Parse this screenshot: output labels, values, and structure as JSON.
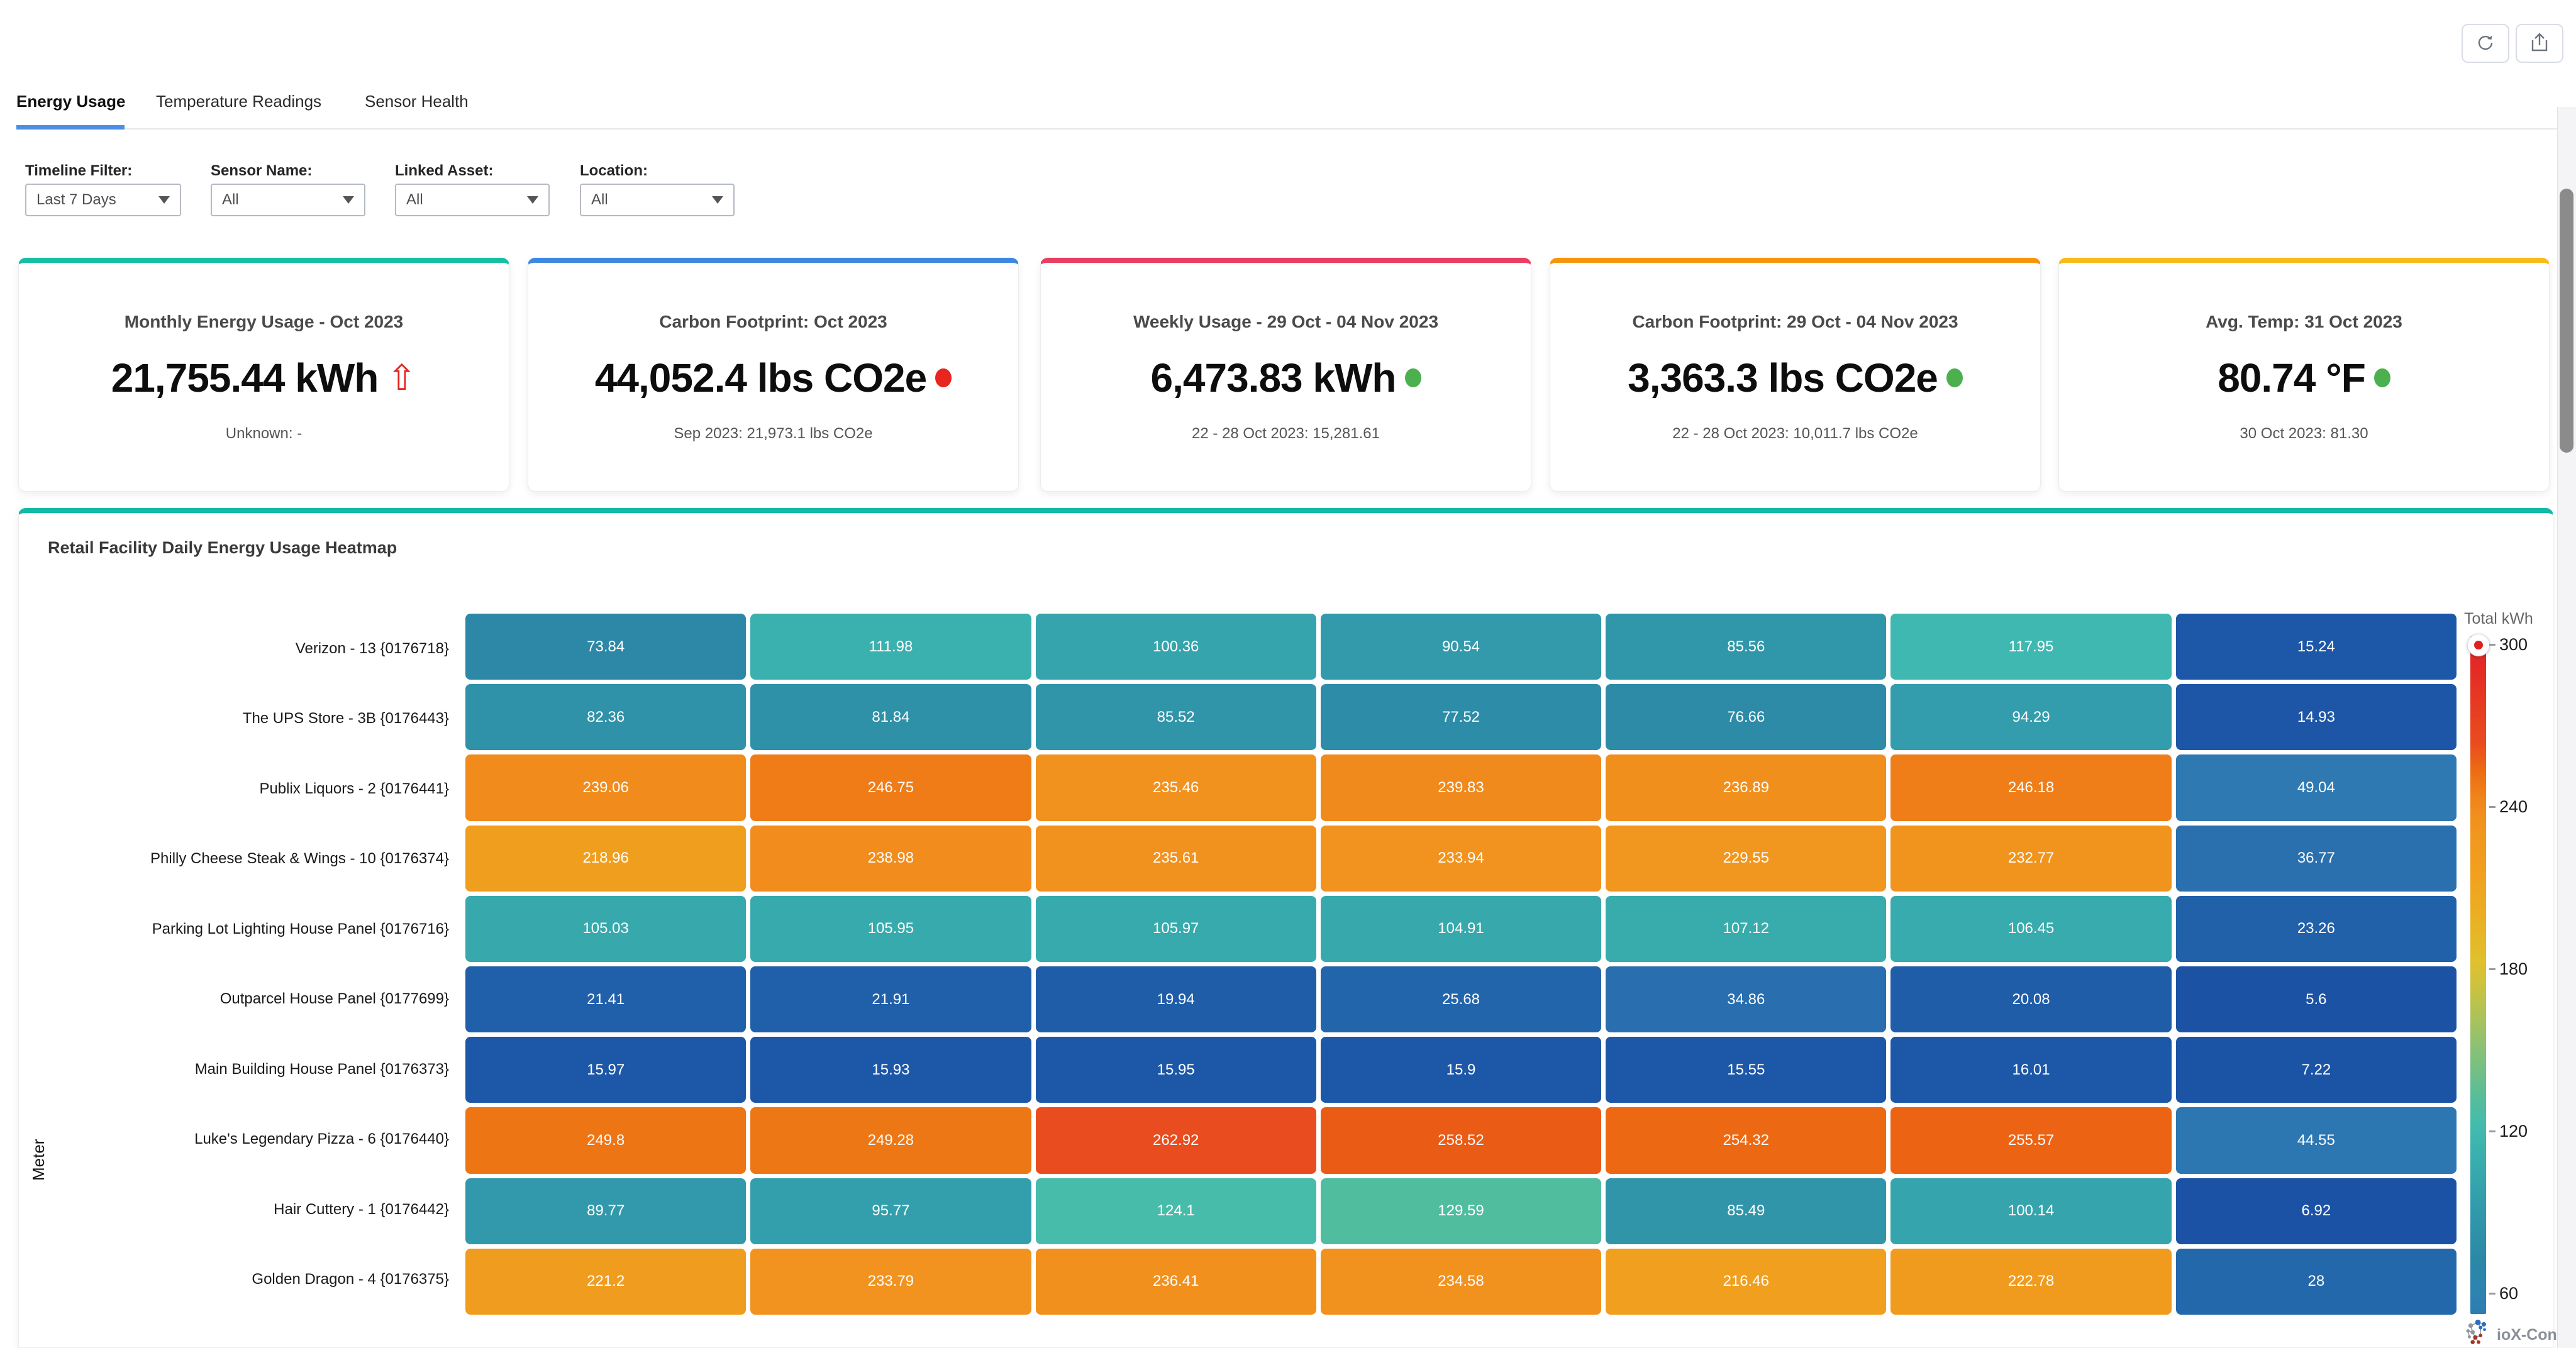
{
  "toolbar": {
    "refresh_label": "refresh",
    "share_label": "share"
  },
  "tabs": [
    {
      "label": "Energy Usage",
      "active": true
    },
    {
      "label": "Temperature Readings",
      "active": false
    },
    {
      "label": "Sensor Health",
      "active": false
    }
  ],
  "tab_accent": "#4a90e2",
  "filters": [
    {
      "label": "Timeline Filter:",
      "value": "Last 7 Days"
    },
    {
      "label": "Sensor Name:",
      "value": "All"
    },
    {
      "label": "Linked Asset:",
      "value": "All"
    },
    {
      "label": "Location:",
      "value": "All"
    }
  ],
  "cards": [
    {
      "title": "Monthly Energy Usage - Oct 2023",
      "value": "21,755.44 kWh",
      "subtitle": "Unknown: -",
      "indicator": "arrow-up",
      "indicator_color": "#e42320",
      "accent": "#15bfa4"
    },
    {
      "title": "Carbon Footprint: Oct 2023",
      "value": "44,052.4 lbs CO2e",
      "subtitle": "Sep 2023: 21,973.1 lbs CO2e",
      "indicator": "dot",
      "indicator_color": "#e8251f",
      "accent": "#3e87e1"
    },
    {
      "title": "Weekly Usage - 29 Oct - 04 Nov 2023",
      "value": "6,473.83 kWh",
      "subtitle": "22 - 28 Oct 2023: 15,281.61",
      "indicator": "dot",
      "indicator_color": "#4cb04f",
      "accent": "#ea3d60"
    },
    {
      "title": "Carbon Footprint: 29 Oct - 04 Nov 2023",
      "value": "3,363.3 lbs CO2e",
      "subtitle": "22 - 28 Oct 2023: 10,011.7 lbs CO2e",
      "indicator": "dot",
      "indicator_color": "#4cb04f",
      "accent": "#f7940d"
    },
    {
      "title": "Avg. Temp: 31 Oct 2023",
      "value": "80.74 °F",
      "subtitle": "30 Oct 2023: 81.30",
      "indicator": "dot",
      "indicator_color": "#4cb04f",
      "accent": "#f8bb17"
    }
  ],
  "heatmap": {
    "title": "Retail Facility Daily Energy Usage Heatmap",
    "accent": "#12b9a6"
  },
  "chart_data": {
    "type": "heatmap",
    "title": "Retail Facility Daily Energy Usage Heatmap",
    "ylabel": "Meter",
    "legend_title": "Total kWh",
    "num_columns": 7,
    "rows": [
      "Verizon - 13 {0176718}",
      "The UPS Store - 3B {0176443}",
      "Publix Liquors - 2 {0176441}",
      "Philly Cheese Steak & Wings - 10 {0176374}",
      "Parking Lot Lighting House Panel {0176716}",
      "Outparcel House Panel {0177699}",
      "Main Building House Panel {0176373}",
      "Luke's Legendary Pizza - 6 {0176440}",
      "Hair Cuttery - 1 {0176442}",
      "Golden Dragon - 4 {0176375}"
    ],
    "values": [
      [
        73.84,
        111.98,
        100.36,
        90.54,
        85.56,
        117.95,
        15.24
      ],
      [
        82.36,
        81.84,
        85.52,
        77.52,
        76.66,
        94.29,
        14.93
      ],
      [
        239.06,
        246.75,
        235.46,
        239.83,
        236.89,
        246.18,
        49.04
      ],
      [
        218.96,
        238.98,
        235.61,
        233.94,
        229.55,
        232.77,
        36.77
      ],
      [
        105.03,
        105.95,
        105.97,
        104.91,
        107.12,
        106.45,
        23.26
      ],
      [
        21.41,
        21.91,
        19.94,
        25.68,
        34.86,
        20.08,
        5.6
      ],
      [
        15.97,
        15.93,
        15.95,
        15.9,
        15.55,
        16.01,
        7.22
      ],
      [
        249.8,
        249.28,
        262.92,
        258.52,
        254.32,
        255.57,
        44.55
      ],
      [
        89.77,
        95.77,
        124.1,
        129.59,
        85.49,
        100.14,
        6.92
      ],
      [
        221.2,
        233.79,
        236.41,
        234.58,
        216.46,
        222.78,
        28
      ]
    ],
    "colorbar": {
      "title": "Total kWh",
      "ticks": [
        300,
        240,
        180,
        120,
        60
      ],
      "marker_value": 300,
      "marker_color": "#e02020"
    },
    "color_stops": [
      {
        "v": 0,
        "c": "#1a4fa3"
      },
      {
        "v": 16,
        "c": "#1d57a7"
      },
      {
        "v": 28,
        "c": "#2468ac"
      },
      {
        "v": 37,
        "c": "#2a70af"
      },
      {
        "v": 50,
        "c": "#2e7ab2"
      },
      {
        "v": 62,
        "c": "#2d84b0"
      },
      {
        "v": 74,
        "c": "#2c88a6"
      },
      {
        "v": 85,
        "c": "#3095a9"
      },
      {
        "v": 95,
        "c": "#339ead"
      },
      {
        "v": 106,
        "c": "#37aaad"
      },
      {
        "v": 118,
        "c": "#3fb8b1"
      },
      {
        "v": 124,
        "c": "#47bcab"
      },
      {
        "v": 131,
        "c": "#53bd9c"
      },
      {
        "v": 150,
        "c": "#8ac177"
      },
      {
        "v": 180,
        "c": "#dfc32e"
      },
      {
        "v": 210,
        "c": "#f0a51e"
      },
      {
        "v": 235,
        "c": "#f1921e"
      },
      {
        "v": 243,
        "c": "#f0851b"
      },
      {
        "v": 250,
        "c": "#ee7514"
      },
      {
        "v": 257,
        "c": "#eb6013"
      },
      {
        "v": 263,
        "c": "#e94c1e"
      },
      {
        "v": 300,
        "c": "#e22128"
      }
    ]
  },
  "footer": {
    "brand": "ioX-Connect."
  }
}
